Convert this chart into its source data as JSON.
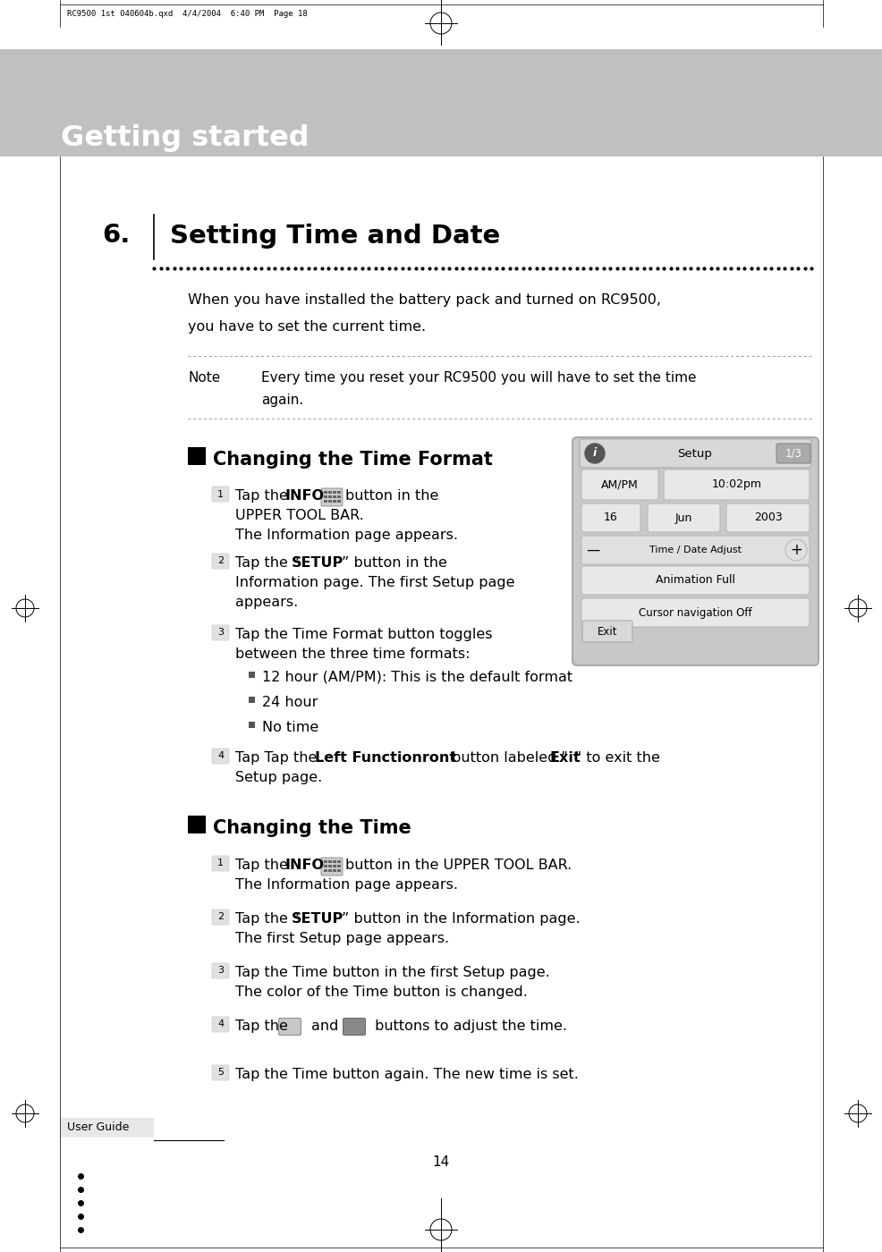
{
  "page_bg": "#ffffff",
  "header_bg": "#b8b8b8",
  "header_text": "Getting started",
  "header_text_color": "#ffffff",
  "top_label": "RC9500 1st 040604b.qxd  4/4/2004  6:40 PM  Page 18",
  "section_number": "6.",
  "section_title": "Setting Time and Date",
  "intro_line1": "When you have installed the battery pack and turned on RC9500,",
  "intro_line2": "you have to set the current time.",
  "note_label": "Note",
  "note_line1": "Every time you reset your RC9500 you will have to set the time",
  "note_line2": "again.",
  "section1_title": "Changing the Time Format",
  "bullet_items": [
    "12 hour (AM/PM): This is the default format",
    "24 hour",
    "No time"
  ],
  "section2_title": "Changing the Time",
  "footer_text": "User Guide",
  "page_number": "14"
}
